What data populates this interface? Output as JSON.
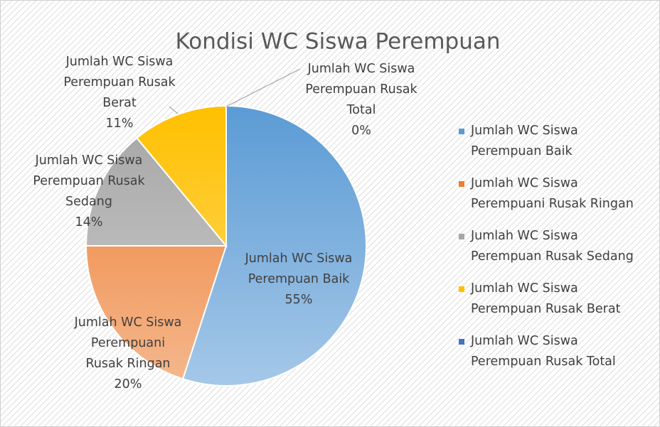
{
  "chart_data": {
    "type": "pie",
    "title": "Kondisi WC Siswa Perempuan",
    "categories": [
      "Jumlah WC Siswa Perempuan Baik",
      "Jumlah WC Siswa Perempuani Rusak Ringan",
      "Jumlah WC Siswa Perempuan Rusak Sedang",
      "Jumlah WC Siswa Perempuan Rusak Berat",
      "Jumlah WC Siswa Perempuan Rusak Total"
    ],
    "values": [
      55,
      20,
      14,
      11,
      0
    ],
    "value_labels": [
      "55%",
      "20%",
      "14%",
      "11%",
      "0%"
    ],
    "colors": [
      "#5b9bd5",
      "#ed7d31",
      "#a5a5a5",
      "#ffc000",
      "#4472c4"
    ],
    "legend": "right"
  }
}
